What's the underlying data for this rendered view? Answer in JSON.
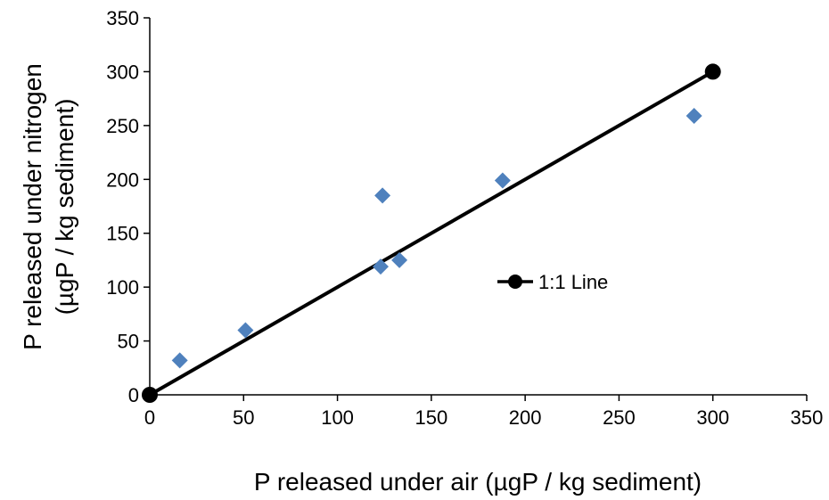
{
  "chart_data": {
    "type": "scatter",
    "title": "",
    "xlabel": "P released under air (µgP / kg sediment)",
    "ylabel_line1": "P released under nitrogen",
    "ylabel_line2": "(µgP / kg sediment)",
    "xlim": [
      0,
      350
    ],
    "ylim": [
      0,
      350
    ],
    "xticks": [
      0,
      50,
      100,
      150,
      200,
      250,
      300,
      350
    ],
    "yticks": [
      0,
      50,
      100,
      150,
      200,
      250,
      300,
      350
    ],
    "grid": false,
    "legend_position": "center-right",
    "series": [
      {
        "marker": "diamond",
        "color": "#4F81BD",
        "points": [
          {
            "x": 16,
            "y": 32
          },
          {
            "x": 51,
            "y": 60
          },
          {
            "x": 123,
            "y": 119
          },
          {
            "x": 124,
            "y": 185
          },
          {
            "x": 133,
            "y": 125
          },
          {
            "x": 188,
            "y": 199
          },
          {
            "x": 290,
            "y": 259
          }
        ]
      },
      {
        "name": "1:1 Line",
        "marker": "circle",
        "line": true,
        "color": "#000000",
        "points": [
          {
            "x": 0,
            "y": 0
          },
          {
            "x": 300,
            "y": 300
          }
        ]
      }
    ]
  }
}
